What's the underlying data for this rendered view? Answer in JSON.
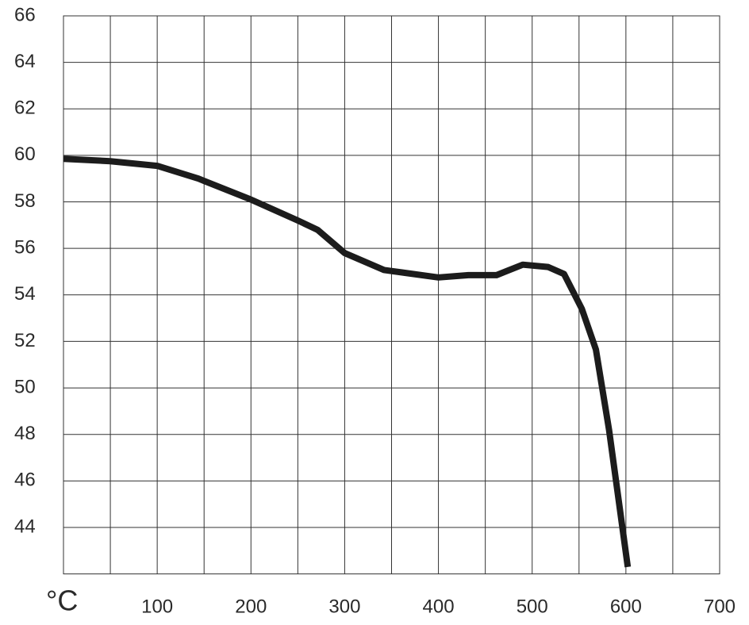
{
  "chart_data": {
    "type": "line",
    "x_label": "°C",
    "x": [
      0,
      50,
      100,
      144,
      200,
      250,
      271,
      300,
      342,
      400,
      432,
      462,
      490,
      517,
      534,
      553,
      568,
      582,
      602
    ],
    "series": [
      {
        "color": "#1c1c1c",
        "values": [
          59.85,
          59.75,
          59.55,
          59.0,
          58.1,
          57.2,
          56.8,
          55.8,
          55.07,
          54.75,
          54.85,
          54.85,
          55.3,
          55.2,
          54.9,
          53.4,
          51.65,
          48.2,
          42.3
        ]
      }
    ],
    "xlim": [
      0,
      700
    ],
    "xticks": [
      100,
      200,
      300,
      400,
      500,
      600,
      700
    ],
    "x_minor_ticks": [
      50,
      150,
      250,
      350,
      450,
      550,
      650
    ],
    "ylim": [
      42,
      66
    ],
    "yticks": [
      44,
      46,
      48,
      50,
      52,
      54,
      56,
      58,
      60,
      62,
      64,
      66
    ],
    "grid": true
  }
}
